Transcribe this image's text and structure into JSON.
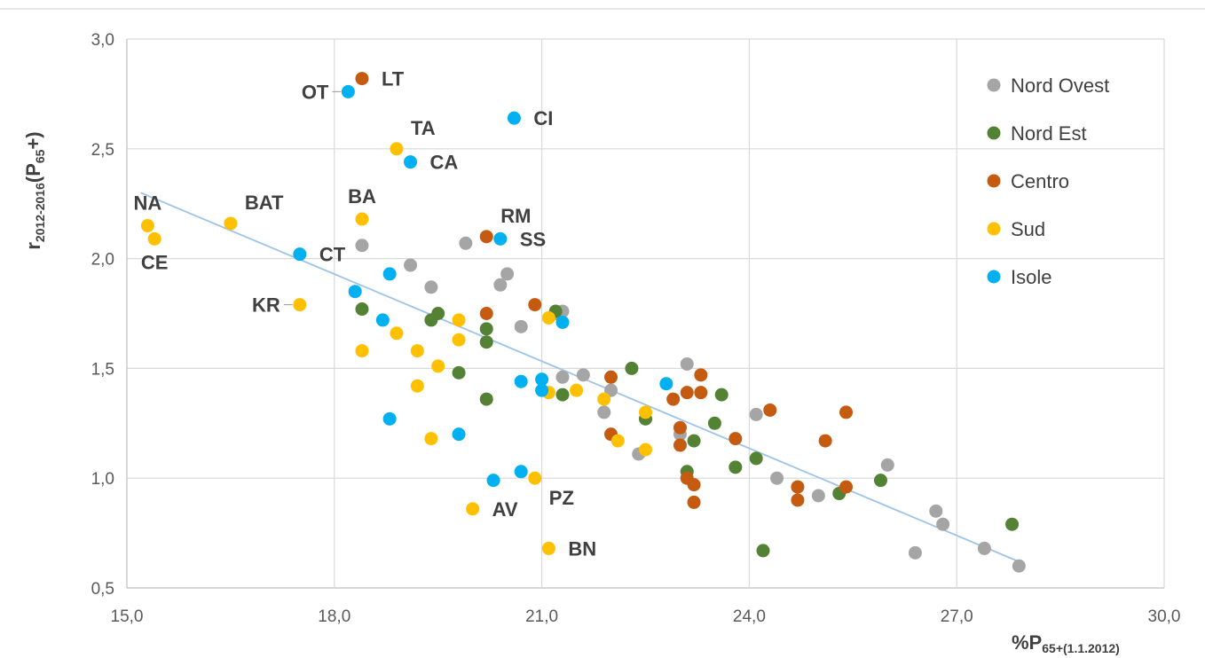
{
  "chart_data": {
    "type": "scatter",
    "title": "",
    "xlabel": {
      "main": "%P",
      "sub": "65+(1.1.2012)"
    },
    "ylabel": {
      "main": "r",
      "sub1": "2012-2016",
      "mid": "(P",
      "sub2": "65",
      "end": "+)"
    },
    "xlim": [
      15,
      30
    ],
    "ylim": [
      0.5,
      3.0
    ],
    "xticks": [
      15,
      18,
      21,
      24,
      27,
      30
    ],
    "yticks": [
      0.5,
      1.0,
      1.5,
      2.0,
      2.5,
      3.0
    ],
    "xtick_labels": [
      "15,0",
      "18,0",
      "21,0",
      "24,0",
      "27,0",
      "30,0"
    ],
    "ytick_labels": [
      "0,5",
      "1,0",
      "1,5",
      "2,0",
      "2,5",
      "3,0"
    ],
    "grid": true,
    "legend_position": "top-right",
    "trendline": {
      "x": [
        15.2,
        27.9
      ],
      "y": [
        2.3,
        0.62
      ],
      "color": "#9dc3e6"
    },
    "series": [
      {
        "name": "Nord Ovest",
        "color": "#a5a5a5",
        "points": [
          [
            18.4,
            2.06
          ],
          [
            19.1,
            1.97
          ],
          [
            19.4,
            1.87
          ],
          [
            19.9,
            2.07
          ],
          [
            20.4,
            1.88
          ],
          [
            20.5,
            1.93
          ],
          [
            20.7,
            1.69
          ],
          [
            21.2,
            1.75
          ],
          [
            21.3,
            1.76
          ],
          [
            21.3,
            1.46
          ],
          [
            21.6,
            1.47
          ],
          [
            21.9,
            1.3
          ],
          [
            22.0,
            1.4
          ],
          [
            22.4,
            1.11
          ],
          [
            23.0,
            1.2
          ],
          [
            23.1,
            1.52
          ],
          [
            24.1,
            1.29
          ],
          [
            24.4,
            1.0
          ],
          [
            25.0,
            0.92
          ],
          [
            26.0,
            1.06
          ],
          [
            26.4,
            0.66
          ],
          [
            26.7,
            0.85
          ],
          [
            26.8,
            0.79
          ],
          [
            27.4,
            0.68
          ],
          [
            27.9,
            0.6
          ]
        ]
      },
      {
        "name": "Nord Est",
        "color": "#548235",
        "points": [
          [
            18.4,
            1.77
          ],
          [
            19.4,
            1.72
          ],
          [
            19.5,
            1.75
          ],
          [
            19.8,
            1.48
          ],
          [
            20.2,
            1.68
          ],
          [
            20.2,
            1.62
          ],
          [
            20.2,
            1.36
          ],
          [
            21.2,
            1.76
          ],
          [
            21.3,
            1.38
          ],
          [
            22.3,
            1.5
          ],
          [
            22.5,
            1.27
          ],
          [
            23.1,
            1.03
          ],
          [
            23.2,
            1.17
          ],
          [
            23.5,
            1.25
          ],
          [
            23.6,
            1.38
          ],
          [
            23.8,
            1.05
          ],
          [
            24.1,
            1.09
          ],
          [
            24.2,
            0.67
          ],
          [
            25.3,
            0.93
          ],
          [
            25.9,
            0.99
          ],
          [
            27.8,
            0.79
          ]
        ]
      },
      {
        "name": "Centro",
        "color": "#c55a11",
        "points": [
          [
            18.4,
            2.82
          ],
          [
            20.2,
            2.1
          ],
          [
            20.2,
            1.75
          ],
          [
            20.9,
            1.79
          ],
          [
            22.0,
            1.46
          ],
          [
            22.0,
            1.2
          ],
          [
            22.9,
            1.36
          ],
          [
            23.0,
            1.23
          ],
          [
            23.0,
            1.15
          ],
          [
            23.1,
            1.39
          ],
          [
            23.1,
            1.0
          ],
          [
            23.2,
            0.97
          ],
          [
            23.2,
            0.89
          ],
          [
            23.3,
            1.47
          ],
          [
            23.3,
            1.39
          ],
          [
            23.8,
            1.18
          ],
          [
            24.3,
            1.31
          ],
          [
            24.7,
            0.96
          ],
          [
            24.7,
            0.9
          ],
          [
            25.1,
            1.17
          ],
          [
            25.4,
            1.3
          ],
          [
            25.4,
            0.96
          ]
        ]
      },
      {
        "name": "Sud",
        "color": "#ffc000",
        "points": [
          [
            15.3,
            2.15
          ],
          [
            15.4,
            2.09
          ],
          [
            16.5,
            2.16
          ],
          [
            17.5,
            1.79
          ],
          [
            18.4,
            2.18
          ],
          [
            18.4,
            1.58
          ],
          [
            18.9,
            2.5
          ],
          [
            18.9,
            1.66
          ],
          [
            19.2,
            1.58
          ],
          [
            19.2,
            1.42
          ],
          [
            19.4,
            1.18
          ],
          [
            19.5,
            1.51
          ],
          [
            19.8,
            1.72
          ],
          [
            19.8,
            1.63
          ],
          [
            20.0,
            0.86
          ],
          [
            20.9,
            1.0
          ],
          [
            21.1,
            1.73
          ],
          [
            21.1,
            1.39
          ],
          [
            21.1,
            0.68
          ],
          [
            21.5,
            1.4
          ],
          [
            21.9,
            1.36
          ],
          [
            22.1,
            1.17
          ],
          [
            22.5,
            1.3
          ],
          [
            22.5,
            1.13
          ]
        ]
      },
      {
        "name": "Isole",
        "color": "#00b0f0",
        "points": [
          [
            18.2,
            2.76
          ],
          [
            19.1,
            2.44
          ],
          [
            20.6,
            2.64
          ],
          [
            20.4,
            2.09
          ],
          [
            17.5,
            2.02
          ],
          [
            18.3,
            1.85
          ],
          [
            18.7,
            1.72
          ],
          [
            18.8,
            1.93
          ],
          [
            18.8,
            1.27
          ],
          [
            19.8,
            1.2
          ],
          [
            20.3,
            0.99
          ],
          [
            20.7,
            1.44
          ],
          [
            20.7,
            1.03
          ],
          [
            21.0,
            1.45
          ],
          [
            21.0,
            1.4
          ],
          [
            21.3,
            1.71
          ],
          [
            22.8,
            1.43
          ]
        ]
      }
    ],
    "annotations": [
      {
        "text": "LT",
        "x": 18.4,
        "y": 2.82,
        "pos": "right"
      },
      {
        "text": "OT",
        "x": 18.2,
        "y": 2.76,
        "pos": "left"
      },
      {
        "text": "CI",
        "x": 20.6,
        "y": 2.64,
        "pos": "right"
      },
      {
        "text": "TA",
        "x": 18.9,
        "y": 2.5,
        "pos": "above-right"
      },
      {
        "text": "CA",
        "x": 19.1,
        "y": 2.44,
        "pos": "right"
      },
      {
        "text": "NA",
        "x": 15.3,
        "y": 2.15,
        "pos": "above"
      },
      {
        "text": "CE",
        "x": 15.4,
        "y": 2.09,
        "pos": "below"
      },
      {
        "text": "BAT",
        "x": 16.5,
        "y": 2.16,
        "pos": "above-right"
      },
      {
        "text": "BA",
        "x": 18.4,
        "y": 2.18,
        "pos": "above"
      },
      {
        "text": "RM",
        "x": 20.2,
        "y": 2.1,
        "pos": "above-right"
      },
      {
        "text": "SS",
        "x": 20.4,
        "y": 2.09,
        "pos": "right"
      },
      {
        "text": "CT",
        "x": 17.5,
        "y": 2.02,
        "pos": "right"
      },
      {
        "text": "KR",
        "x": 17.5,
        "y": 1.79,
        "pos": "left"
      },
      {
        "text": "PZ",
        "x": 20.9,
        "y": 1.0,
        "pos": "below-right"
      },
      {
        "text": "AV",
        "x": 20.0,
        "y": 0.86,
        "pos": "right"
      },
      {
        "text": "BN",
        "x": 21.1,
        "y": 0.68,
        "pos": "right"
      }
    ]
  }
}
